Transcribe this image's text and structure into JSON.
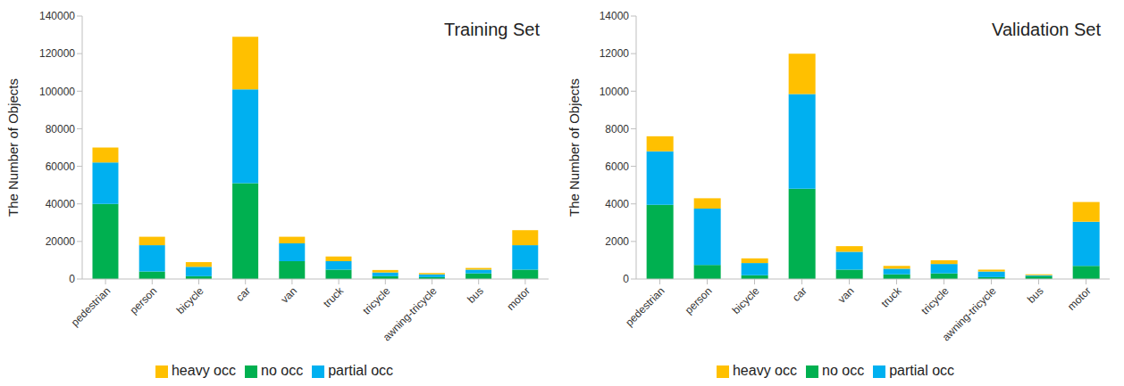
{
  "chart_data": [
    {
      "type": "bar",
      "title": "Training Set",
      "y_label": "The Number of Objects",
      "stacked": true,
      "grid": false,
      "legend": "bottom",
      "categories": [
        "pedestrian",
        "person",
        "bicycle",
        "car",
        "van",
        "truck",
        "tricycle",
        "awning-tricycle",
        "bus",
        "motor"
      ],
      "series": [
        {
          "name": "no occ",
          "color": "#00b050",
          "values": [
            40000,
            4000,
            1500,
            51000,
            9500,
            5000,
            1500,
            1000,
            3000,
            5000
          ]
        },
        {
          "name": "partial occ",
          "color": "#00b0f0",
          "values": [
            22000,
            14000,
            5000,
            50000,
            9500,
            4500,
            2000,
            1500,
            2000,
            13000
          ]
        },
        {
          "name": "heavy occ",
          "color": "#ffc000",
          "values": [
            8000,
            4500,
            2500,
            28000,
            3500,
            2500,
            1300,
            700,
            900,
            8000
          ]
        }
      ],
      "ylim": [
        0,
        140000
      ],
      "yticks": [
        0,
        20000,
        40000,
        60000,
        80000,
        100000,
        120000,
        140000
      ]
    },
    {
      "type": "bar",
      "title": "Validation Set",
      "y_label": "The Number of Objects",
      "stacked": true,
      "grid": false,
      "legend": "bottom",
      "categories": [
        "pedestrian",
        "person",
        "bicycle",
        "car",
        "van",
        "truck",
        "tricycle",
        "awning-tricycle",
        "bus",
        "motor"
      ],
      "series": [
        {
          "name": "no occ",
          "color": "#00b050",
          "values": [
            3950,
            750,
            200,
            4800,
            500,
            250,
            300,
            100,
            150,
            700
          ]
        },
        {
          "name": "partial occ",
          "color": "#00b0f0",
          "values": [
            2850,
            3000,
            650,
            5050,
            950,
            300,
            500,
            300,
            50,
            2350
          ]
        },
        {
          "name": "heavy occ",
          "color": "#ffc000",
          "values": [
            800,
            550,
            250,
            2150,
            300,
            150,
            200,
            100,
            50,
            1050
          ]
        }
      ],
      "ylim": [
        0,
        14000
      ],
      "yticks": [
        0,
        2000,
        4000,
        6000,
        8000,
        10000,
        12000,
        14000
      ]
    }
  ]
}
